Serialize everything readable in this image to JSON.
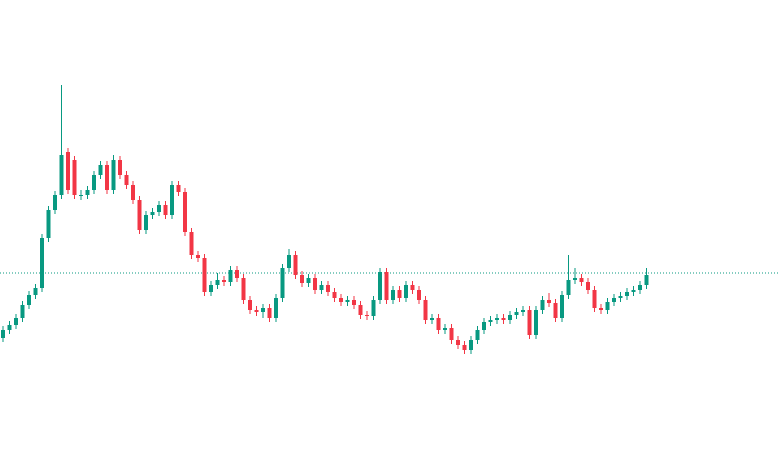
{
  "chart_data": {
    "type": "candlestick",
    "up_color": "#089981",
    "down_color": "#f23645",
    "ylim": [
      0,
      463
    ],
    "price_line": {
      "value": 190,
      "color": "#089981"
    },
    "open": [
      125,
      133,
      138,
      145,
      158,
      168,
      175,
      225,
      253,
      268,
      311,
      303,
      268,
      268,
      273,
      288,
      298,
      273,
      303,
      288,
      278,
      263,
      233,
      248,
      251,
      258,
      248,
      278,
      271,
      231,
      208,
      205,
      171,
      178,
      183,
      181,
      193,
      185,
      163,
      153,
      151,
      155,
      145,
      165,
      195,
      208,
      188,
      180,
      185,
      173,
      178,
      171,
      165,
      161,
      163,
      158,
      148,
      147,
      163,
      191,
      163,
      173,
      165,
      178,
      173,
      163,
      143,
      145,
      133,
      135,
      123,
      118,
      113,
      123,
      133,
      141,
      143,
      145,
      143,
      148,
      151,
      153,
      128,
      153,
      163,
      160,
      145,
      168,
      183,
      185,
      181,
      173,
      155,
      153,
      161,
      165,
      167,
      171,
      173,
      178
    ],
    "high": [
      137,
      142,
      149,
      162,
      172,
      179,
      229,
      257,
      272,
      378,
      315,
      307,
      273,
      277,
      292,
      302,
      302,
      308,
      307,
      292,
      282,
      267,
      252,
      255,
      262,
      262,
      282,
      282,
      275,
      235,
      212,
      209,
      182,
      190,
      187,
      197,
      197,
      189,
      167,
      157,
      159,
      159,
      169,
      199,
      214,
      212,
      192,
      189,
      189,
      182,
      182,
      175,
      169,
      167,
      167,
      162,
      152,
      167,
      195,
      195,
      177,
      177,
      182,
      182,
      177,
      167,
      149,
      149,
      139,
      139,
      127,
      122,
      127,
      137,
      145,
      147,
      149,
      149,
      152,
      155,
      157,
      157,
      157,
      167,
      170,
      164,
      172,
      208,
      195,
      189,
      185,
      177,
      159,
      165,
      169,
      171,
      175,
      177,
      182,
      195
    ],
    "low": [
      121,
      129,
      134,
      141,
      154,
      164,
      171,
      221,
      249,
      264,
      269,
      264,
      263,
      264,
      269,
      284,
      269,
      269,
      284,
      274,
      259,
      229,
      229,
      244,
      247,
      244,
      244,
      267,
      227,
      204,
      201,
      167,
      167,
      174,
      177,
      177,
      181,
      159,
      149,
      147,
      145,
      141,
      141,
      161,
      191,
      184,
      176,
      176,
      169,
      169,
      167,
      161,
      157,
      157,
      154,
      144,
      143,
      143,
      159,
      159,
      159,
      161,
      161,
      169,
      159,
      139,
      139,
      129,
      129,
      119,
      114,
      109,
      109,
      119,
      129,
      137,
      139,
      139,
      139,
      144,
      147,
      124,
      124,
      149,
      156,
      141,
      141,
      164,
      179,
      177,
      169,
      151,
      149,
      149,
      157,
      161,
      163,
      167,
      169,
      174
    ],
    "close": [
      133,
      138,
      145,
      158,
      168,
      175,
      225,
      253,
      268,
      308,
      273,
      268,
      268,
      273,
      288,
      298,
      273,
      303,
      288,
      278,
      263,
      233,
      248,
      251,
      258,
      248,
      278,
      271,
      231,
      208,
      205,
      171,
      178,
      183,
      181,
      193,
      185,
      163,
      153,
      151,
      155,
      145,
      165,
      195,
      208,
      188,
      180,
      185,
      173,
      178,
      171,
      165,
      161,
      163,
      158,
      148,
      147,
      163,
      191,
      163,
      173,
      165,
      178,
      173,
      163,
      143,
      145,
      133,
      135,
      123,
      118,
      113,
      123,
      133,
      141,
      143,
      145,
      143,
      148,
      151,
      153,
      128,
      153,
      163,
      160,
      145,
      168,
      183,
      185,
      181,
      173,
      155,
      153,
      161,
      165,
      167,
      171,
      173,
      178,
      188
    ]
  }
}
